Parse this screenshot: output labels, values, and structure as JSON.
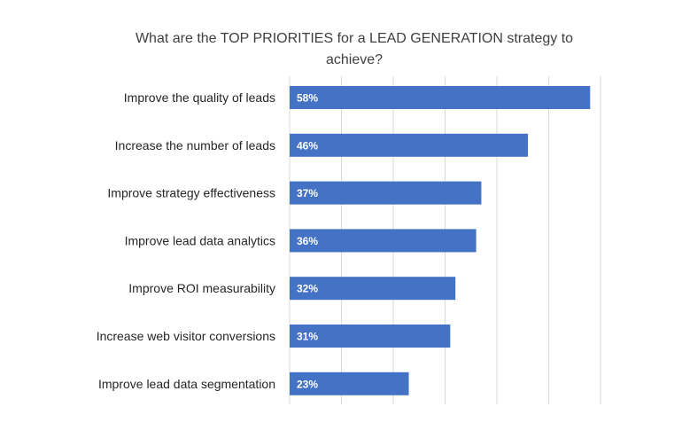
{
  "chart_data": {
    "type": "bar",
    "orientation": "horizontal",
    "title": "What are the TOP PRIORITIES for a LEAD GENERATION strategy to achieve?",
    "categories": [
      "Improve the quality of leads",
      "Increase the number of leads",
      "Improve strategy effectiveness",
      "Improve lead data analytics",
      "Improve ROI measurability",
      "Increase web visitor conversions",
      "Improve lead data segmentation"
    ],
    "values": [
      58,
      46,
      37,
      36,
      32,
      31,
      23
    ],
    "value_labels": [
      "58%",
      "46%",
      "37%",
      "36%",
      "32%",
      "31%",
      "23%"
    ],
    "xlim": [
      0,
      60
    ],
    "x_gridlines": [
      0,
      10,
      20,
      30,
      40,
      50,
      60
    ],
    "grid": true,
    "legend": "none",
    "bar_color": "#4472C4",
    "grid_color": "#D9D9D9"
  }
}
